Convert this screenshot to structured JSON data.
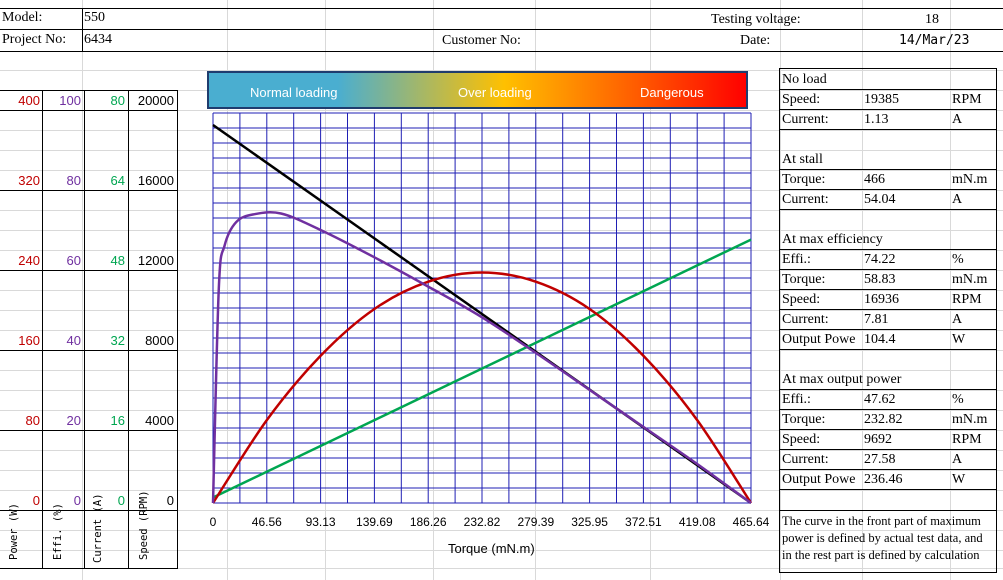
{
  "header": {
    "model_label": "Model:",
    "model_value": "550",
    "project_label": "Project No:",
    "project_value": "6434",
    "customer_label": "Customer No:",
    "voltage_label": "Testing voltage:",
    "voltage_value": "18",
    "date_label": "Date:",
    "date_value": "14/Mar/23"
  },
  "banner": {
    "normal": "Normal loading",
    "over": "Over loading",
    "danger": "Dangerous"
  },
  "left_axes": {
    "power": [
      "400",
      "320",
      "240",
      "160",
      "80",
      "0"
    ],
    "effi": [
      "100",
      "80",
      "60",
      "40",
      "20",
      "0"
    ],
    "current": [
      "80",
      "64",
      "48",
      "32",
      "16",
      "0"
    ],
    "speed": [
      "20000",
      "16000",
      "12000",
      "8000",
      "4000",
      "0"
    ],
    "labels": {
      "power": "Power (W)",
      "effi": "Effi. (%)",
      "current": "Current (A)",
      "speed": "Speed (RPM)"
    },
    "colors": {
      "power": "#c00000",
      "effi": "#7030a0",
      "current": "#00a651",
      "speed": "#000000"
    }
  },
  "x_axis": {
    "ticks": [
      "0",
      "46.56",
      "93.13",
      "139.69",
      "186.26",
      "232.82",
      "279.39",
      "325.95",
      "372.51",
      "419.08",
      "465.64"
    ],
    "label": "Torque (mN.m)"
  },
  "right_panel": {
    "no_load": {
      "title": "No load",
      "rows": [
        {
          "label": "Speed:",
          "value": "19385",
          "unit": "RPM"
        },
        {
          "label": "Current:",
          "value": "1.13",
          "unit": "A"
        }
      ]
    },
    "stall": {
      "title": "At stall",
      "rows": [
        {
          "label": "Torque:",
          "value": "466",
          "unit": "mN.m"
        },
        {
          "label": "Current:",
          "value": "54.04",
          "unit": "A"
        }
      ]
    },
    "max_eff": {
      "title": "At max efficiency",
      "rows": [
        {
          "label": "Effi.:",
          "value": "74.22",
          "unit": "%"
        },
        {
          "label": "Torque:",
          "value": "58.83",
          "unit": "mN.m"
        },
        {
          "label": "Speed:",
          "value": "16936",
          "unit": "RPM"
        },
        {
          "label": "Current:",
          "value": "7.81",
          "unit": "A"
        },
        {
          "label": "Output Powe",
          "value": "104.4",
          "unit": "W"
        }
      ]
    },
    "max_power": {
      "title": "At max output power",
      "rows": [
        {
          "label": "Effi.:",
          "value": "47.62",
          "unit": "%"
        },
        {
          "label": "Torque:",
          "value": "232.82",
          "unit": "mN.m"
        },
        {
          "label": "Speed:",
          "value": "9692",
          "unit": "RPM"
        },
        {
          "label": "Current:",
          "value": "27.58",
          "unit": "A"
        },
        {
          "label": "Output Powe",
          "value": "236.46",
          "unit": "W"
        }
      ]
    },
    "note_lines": [
      "The curve in the front part of maximum",
      "power is defined by actual test data, and",
      "in the rest part is defined by calculation"
    ]
  },
  "chart_data": {
    "type": "line",
    "xlabel": "Torque (mN.m)",
    "xlim": [
      0,
      465.64
    ],
    "x_ticks": [
      0,
      46.56,
      93.13,
      139.69,
      186.26,
      232.82,
      279.39,
      325.95,
      372.51,
      419.08,
      465.64
    ],
    "series": [
      {
        "axis": "speed_rpm",
        "color": "#000000",
        "ylim": [
          0,
          20000
        ],
        "x": [
          0,
          465.64
        ],
        "y": [
          19385,
          0
        ]
      },
      {
        "axis": "current_a",
        "color": "#00a651",
        "ylim": [
          0,
          80
        ],
        "x": [
          0,
          465.64
        ],
        "y": [
          1.13,
          54.04
        ]
      },
      {
        "axis": "power_w",
        "color": "#c00000",
        "ylim": [
          0,
          400
        ],
        "x": [
          0,
          46.56,
          93.13,
          139.69,
          186.26,
          232.82,
          279.39,
          325.95,
          372.51,
          419.08,
          465.64
        ],
        "y": [
          0,
          85,
          151,
          199,
          227,
          236.46,
          227,
          199,
          151,
          85,
          0
        ]
      },
      {
        "axis": "efficiency_pct",
        "color": "#7030a0",
        "ylim": [
          0,
          100
        ],
        "x": [
          0,
          5,
          10,
          20,
          35,
          58.83,
          93.13,
          139.69,
          186.26,
          232.82,
          279.39,
          325.95,
          372.51,
          419.08,
          465.64
        ],
        "y": [
          0,
          55,
          66,
          72,
          74,
          74.22,
          70,
          63,
          55.5,
          47.62,
          38.5,
          29,
          19.5,
          10,
          0
        ]
      }
    ]
  }
}
